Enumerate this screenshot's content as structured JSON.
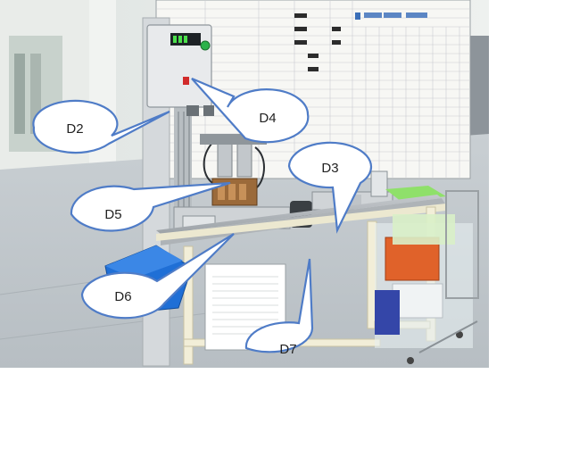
{
  "callouts": {
    "d2": "D2",
    "d3": "D3",
    "d4": "D4",
    "d5": "D5",
    "d6": "D6",
    "d7": "D7"
  },
  "colors": {
    "callout_stroke": "#4f7cc7",
    "callout_fill": "#ffffff",
    "leader_line": "#4f7cc7",
    "control_box": "#e8eaec",
    "table_frame": "#f2eed8",
    "blue_bin": "#1f6fd6",
    "orange_crate": "#e0622a",
    "green_sheets": "#8fe06a",
    "whiteboard": "#f7f7f4"
  }
}
